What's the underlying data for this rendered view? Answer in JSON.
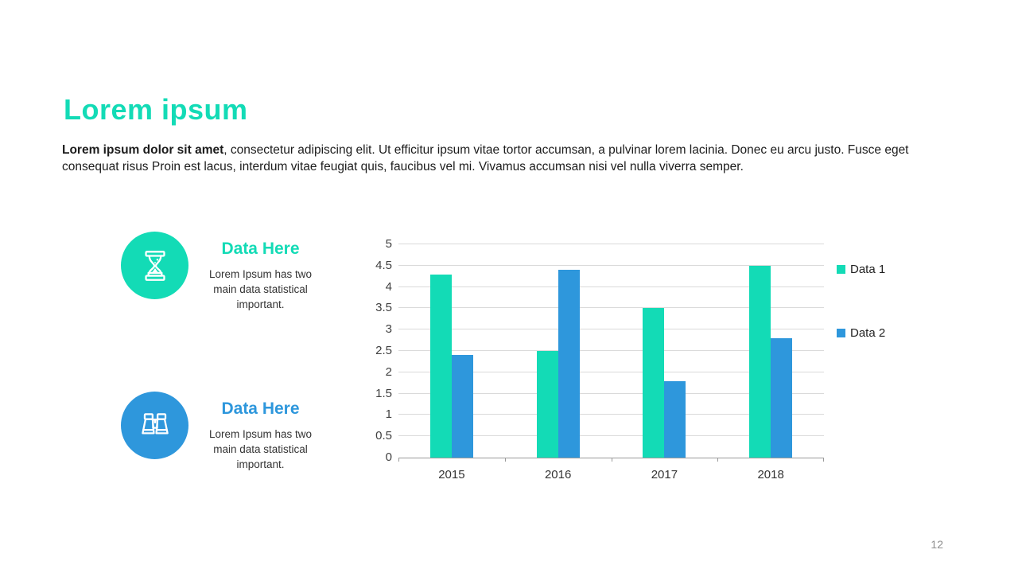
{
  "slide": {
    "title": "Lorem ipsum",
    "page_number": "12"
  },
  "paragraph": {
    "bold": "Lorem ipsum dolor sit amet",
    "line1_rest": ", consectetur adipiscing elit. Ut efficitur ipsum vitae tortor accumsan, a pulvinar lorem lacinia. Donec eu arcu justo. Fusce eget",
    "line2": "consequat risus Proin est lacus, interdum vitae feugiat quis, faucibus vel mi.  Vivamus accumsan nisi vel nulla viverra semper."
  },
  "colors": {
    "teal": "#13DBB6",
    "blue": "#2E97DC"
  },
  "features": [
    {
      "heading": "Data Here",
      "body": "Lorem Ipsum has two main data statistical important.",
      "icon": "hourglass-icon",
      "color": "#13DBB6"
    },
    {
      "heading": "Data Here",
      "body": "Lorem Ipsum has two main data statistical important.",
      "icon": "binoculars-icon",
      "color": "#2E97DC"
    }
  ],
  "chart_data": {
    "type": "bar",
    "categories": [
      "2015",
      "2016",
      "2017",
      "2018"
    ],
    "series": [
      {
        "name": "Data 1",
        "color": "#13DBB6",
        "values": [
          4.3,
          2.5,
          3.5,
          4.5
        ]
      },
      {
        "name": "Data 2",
        "color": "#2E97DC",
        "values": [
          2.4,
          4.4,
          1.8,
          2.8
        ]
      }
    ],
    "title": "",
    "xlabel": "",
    "ylabel": "",
    "ylim": [
      0,
      5
    ],
    "ytick_step": 0.5,
    "grid": true,
    "legend_position": "right"
  }
}
